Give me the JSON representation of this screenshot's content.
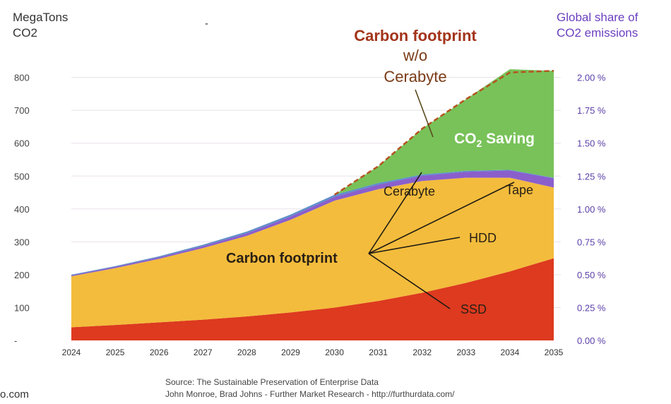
{
  "chart_data": {
    "type": "area",
    "x": [
      2024,
      2025,
      2026,
      2027,
      2028,
      2029,
      2030,
      2031,
      2032,
      2033,
      2034,
      2035
    ],
    "xtick_labels": [
      "2024",
      "2025",
      "2026",
      "2027",
      "2028",
      "2029",
      "2030",
      "2031",
      "2032",
      "2033",
      "2034",
      "2035"
    ],
    "ylabel": [
      "MegaTons",
      "CO2"
    ],
    "ylim": [
      0,
      820
    ],
    "yticks": [
      {
        "value": 0,
        "label": "-"
      },
      {
        "value": 100,
        "label": "100"
      },
      {
        "value": 200,
        "label": "200"
      },
      {
        "value": 300,
        "label": "300"
      },
      {
        "value": 400,
        "label": "400"
      },
      {
        "value": 500,
        "label": "500"
      },
      {
        "value": 600,
        "label": "600"
      },
      {
        "value": 700,
        "label": "700"
      },
      {
        "value": 800,
        "label": "800"
      }
    ],
    "y2label": [
      "Global share of",
      "CO2 emissions"
    ],
    "y2ticks": [
      {
        "value": 0,
        "label": "0.00 %"
      },
      {
        "value": 100,
        "label": "0.25 %"
      },
      {
        "value": 200,
        "label": "0.50 %"
      },
      {
        "value": 300,
        "label": "0.75 %"
      },
      {
        "value": 400,
        "label": "1.00 %"
      },
      {
        "value": 500,
        "label": "1.25 %"
      },
      {
        "value": 600,
        "label": "1.50 %"
      },
      {
        "value": 700,
        "label": "1.75 %"
      },
      {
        "value": 800,
        "label": "2.00 %"
      }
    ],
    "grid": true,
    "stacked": true,
    "series": [
      {
        "name": "SSD",
        "color": "#dd3a1f",
        "values": [
          40,
          47,
          55,
          63,
          73,
          85,
          100,
          120,
          145,
          175,
          210,
          250
        ]
      },
      {
        "name": "HDD",
        "color": "#f3bc3c",
        "values": [
          155,
          173,
          193,
          218,
          245,
          282,
          325,
          340,
          340,
          320,
          285,
          215
        ]
      },
      {
        "name": "Tape",
        "color": "#8a5fcc",
        "values": [
          3,
          4,
          5,
          6,
          8,
          10,
          12,
          14,
          16,
          18,
          22,
          28
        ]
      },
      {
        "name": "Cerabyte",
        "color": "#5d8fc9",
        "values": [
          2,
          2,
          3,
          4,
          5,
          6,
          6,
          5,
          4,
          3,
          2,
          2
        ]
      },
      {
        "name": "CO2 Saving",
        "color": "#78c259",
        "values": [
          0,
          0,
          0,
          0,
          0,
          0,
          0,
          51,
          139,
          218,
          306,
          325
        ]
      }
    ],
    "dashed_line": {
      "name": "Carbon footprint w/o Cerabyte",
      "color": "#b5531f",
      "values": [
        null,
        null,
        null,
        null,
        null,
        null,
        443,
        530,
        644,
        734,
        815,
        820
      ]
    },
    "annotations": {
      "footprint_wo_line1": "Carbon footprint",
      "footprint_wo_line2": "w/o",
      "footprint_wo_line3": "Cerabyte",
      "co2_saving_prefix": "CO",
      "co2_saving_sub": "2",
      "co2_saving_suffix": " Saving",
      "cerabyte": "Cerabyte",
      "tape": "Tape",
      "hdd": "HDD",
      "ssd": "SSD",
      "carbon_footprint": "Carbon footprint"
    }
  },
  "source_line1": "Source: The Sustainable Preservation of Enterprise Data",
  "source_line2": "John Monroe, Brad Johns - Further Market Research - http://furthurdata.com/",
  "corner_text": "o.com",
  "top_mark": "-"
}
